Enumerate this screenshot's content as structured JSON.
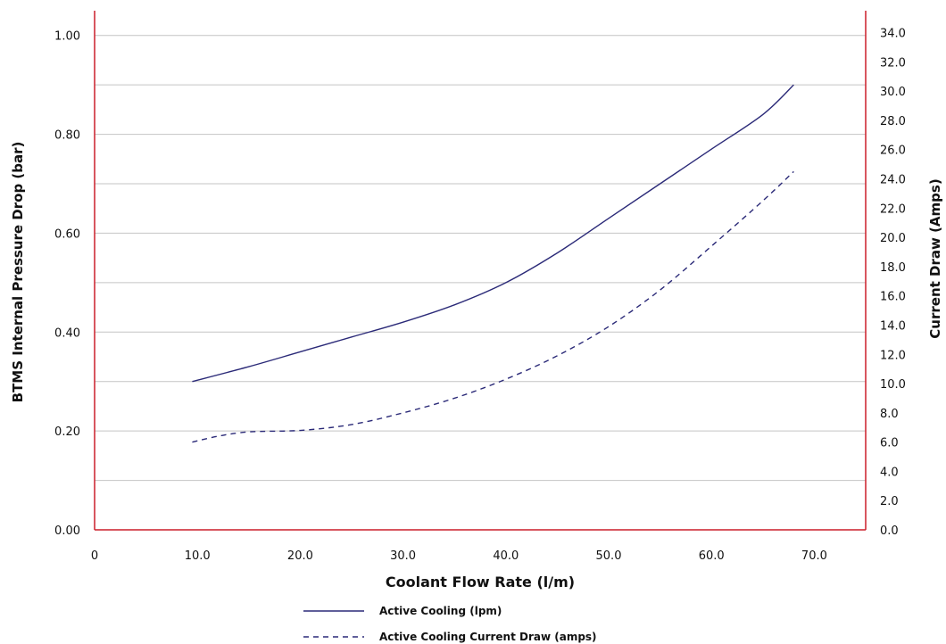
{
  "chart_data": {
    "type": "line",
    "xlabel": "Coolant Flow Rate (l/m)",
    "ylabel_left": "BTMS Internal Pressure Drop (bar)",
    "ylabel_right": "Current Draw (Amps)",
    "xlim": [
      0,
      75
    ],
    "ylim_left": [
      0,
      1.05
    ],
    "ylim_right": [
      0,
      35.5
    ],
    "x_ticks": [
      "0",
      "10.0",
      "20.0",
      "30.0",
      "40.0",
      "50.0",
      "60.0",
      "70.0"
    ],
    "x_tick_values": [
      0,
      10,
      20,
      30,
      40,
      50,
      60,
      70
    ],
    "y_left_ticks": [
      "0.00",
      "0.20",
      "0.40",
      "0.60",
      "0.80",
      "1.00"
    ],
    "y_left_tick_values": [
      0,
      0.2,
      0.4,
      0.6,
      0.8,
      1.0
    ],
    "y_right_ticks": [
      "0.0",
      "2.0",
      "4.0",
      "6.0",
      "8.0",
      "10.0",
      "12.0",
      "14.0",
      "16.0",
      "18.0",
      "20.0",
      "22.0",
      "24.0",
      "26.0",
      "28.0",
      "30.0",
      "32.0",
      "34.0"
    ],
    "y_right_tick_values": [
      0,
      2,
      4,
      6,
      8,
      10,
      12,
      14,
      16,
      18,
      20,
      22,
      24,
      26,
      28,
      30,
      32,
      34
    ],
    "gridlines_left": [
      0.1,
      0.2,
      0.3,
      0.4,
      0.5,
      0.6,
      0.7,
      0.8,
      0.9,
      1.0
    ],
    "grid": true,
    "legend_position": "bottom-center",
    "series": [
      {
        "name": "Active Cooling (lpm)",
        "axis": "left",
        "style": "solid",
        "color": "#2b2a78",
        "x": [
          9.5,
          15,
          20,
          25,
          30,
          35,
          40,
          45,
          50,
          55,
          60,
          65,
          68
        ],
        "y": [
          0.3,
          0.33,
          0.36,
          0.39,
          0.42,
          0.455,
          0.5,
          0.56,
          0.63,
          0.7,
          0.77,
          0.84,
          0.9
        ]
      },
      {
        "name": "Active Cooling Current Draw (amps)",
        "axis": "right",
        "style": "dashed",
        "color": "#2b2a78",
        "x": [
          9.5,
          12,
          15,
          20,
          25,
          30,
          35,
          40,
          45,
          50,
          55,
          60,
          65,
          68
        ],
        "y": [
          6.0,
          6.4,
          6.7,
          6.8,
          7.2,
          8.0,
          9.0,
          10.3,
          11.9,
          13.9,
          16.4,
          19.4,
          22.5,
          24.5
        ]
      }
    ]
  },
  "colors": {
    "axis_frame": "#cc1f2a",
    "grid": "#c4c4c4",
    "series": "#2b2a78"
  }
}
